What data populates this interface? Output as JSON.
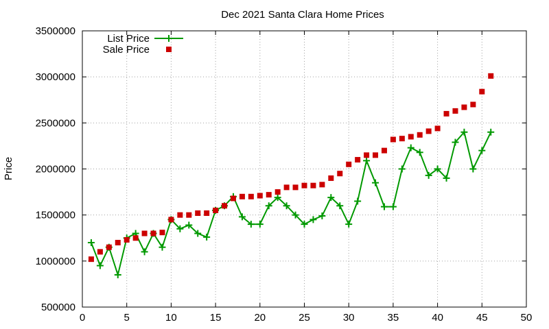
{
  "chart_data": {
    "type": "line",
    "title": "Dec 2021 Santa Clara Home Prices",
    "xlabel": "",
    "ylabel": "Price",
    "xlim": [
      0,
      50
    ],
    "ylim": [
      500000,
      3500000
    ],
    "x_ticks": [
      0,
      5,
      10,
      15,
      20,
      25,
      30,
      35,
      40,
      45,
      50
    ],
    "y_ticks": [
      500000,
      1000000,
      1500000,
      2000000,
      2500000,
      3000000,
      3500000
    ],
    "grid": true,
    "legend_position": "top-left",
    "series": [
      {
        "name": "List Price",
        "style": "line-with-plus-markers",
        "color": "#009900",
        "x": [
          1,
          2,
          3,
          4,
          5,
          6,
          7,
          8,
          9,
          10,
          11,
          12,
          13,
          14,
          15,
          16,
          17,
          18,
          19,
          20,
          21,
          22,
          23,
          24,
          25,
          26,
          27,
          28,
          29,
          30,
          31,
          32,
          33,
          34,
          35,
          36,
          37,
          38,
          39,
          40,
          41,
          42,
          43,
          44,
          45,
          46
        ],
        "values": [
          1200000,
          950000,
          1150000,
          850000,
          1250000,
          1300000,
          1100000,
          1300000,
          1150000,
          1450000,
          1350000,
          1390000,
          1300000,
          1260000,
          1550000,
          1600000,
          1700000,
          1480000,
          1400000,
          1400000,
          1600000,
          1690000,
          1600000,
          1500000,
          1400000,
          1450000,
          1490000,
          1690000,
          1600000,
          1400000,
          1650000,
          2090000,
          1850000,
          1590000,
          1590000,
          2000000,
          2230000,
          2180000,
          1930000,
          2000000,
          1900000,
          2290000,
          2400000,
          2000000,
          2200000,
          2400000
        ]
      },
      {
        "name": "Sale Price",
        "style": "square-markers",
        "color": "#cc0000",
        "x": [
          1,
          2,
          3,
          4,
          5,
          6,
          7,
          8,
          9,
          10,
          11,
          12,
          13,
          14,
          15,
          16,
          17,
          18,
          19,
          20,
          21,
          22,
          23,
          24,
          25,
          26,
          27,
          28,
          29,
          30,
          31,
          32,
          33,
          34,
          35,
          36,
          37,
          38,
          39,
          40,
          41,
          42,
          43,
          44,
          45,
          46
        ],
        "values": [
          1020000,
          1100000,
          1150000,
          1200000,
          1230000,
          1250000,
          1300000,
          1300000,
          1310000,
          1450000,
          1500000,
          1500000,
          1520000,
          1520000,
          1550000,
          1600000,
          1680000,
          1700000,
          1700000,
          1710000,
          1720000,
          1750000,
          1800000,
          1800000,
          1820000,
          1820000,
          1830000,
          1900000,
          1950000,
          2050000,
          2100000,
          2150000,
          2150000,
          2200000,
          2320000,
          2330000,
          2350000,
          2370000,
          2410000,
          2440000,
          2600000,
          2630000,
          2670000,
          2700000,
          2840000,
          3010000
        ]
      }
    ]
  }
}
